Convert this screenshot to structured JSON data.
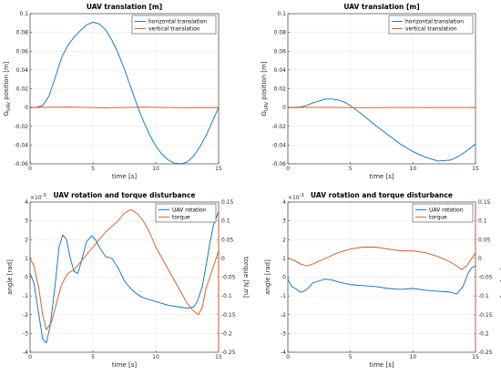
{
  "colors": {
    "blue": "#0072BD",
    "orange": "#D95319",
    "grid": "#e6e6e6",
    "axis": "#262626"
  },
  "chart_data": [
    {
      "type": "line",
      "title": "UAV translation [m]",
      "xlabel": "time [s]",
      "ylabel": "G_UAV position [m]",
      "ylabel_main": "G",
      "ylabel_sub": "UAV",
      "ylabel_rest": " position [m]",
      "xlim": [
        0,
        15
      ],
      "ylim": [
        -0.06,
        0.1
      ],
      "xticks": [
        0,
        5,
        10,
        15
      ],
      "yticks": [
        -0.06,
        -0.04,
        -0.02,
        0,
        0.02,
        0.04,
        0.06,
        0.08,
        0.1
      ],
      "ytick_labels": [
        "-0.06",
        "-0.04",
        "-0.02",
        "0",
        "0.02",
        "0.04",
        "0.06",
        "0.08",
        "0.1"
      ],
      "grid": true,
      "legend": "top-right",
      "series": [
        {
          "name": "horizontal translation",
          "color": "blue",
          "x": [
            0,
            0.5,
            1,
            1.5,
            2,
            2.5,
            3,
            3.5,
            4,
            4.5,
            5,
            5.5,
            6,
            6.5,
            7,
            7.5,
            8,
            8.5,
            9,
            9.5,
            10,
            10.5,
            11,
            11.5,
            12,
            12.5,
            13,
            13.5,
            14,
            14.5,
            15
          ],
          "y": [
            0,
            0.0003,
            0.002,
            0.012,
            0.032,
            0.053,
            0.066,
            0.075,
            0.082,
            0.088,
            0.091,
            0.089,
            0.083,
            0.072,
            0.058,
            0.041,
            0.022,
            0.003,
            -0.014,
            -0.029,
            -0.041,
            -0.05,
            -0.056,
            -0.0595,
            -0.06,
            -0.058,
            -0.052,
            -0.042,
            -0.03,
            -0.015,
            0
          ]
        },
        {
          "name": "vertical translation",
          "color": "orange",
          "x": [
            0,
            3,
            6,
            9,
            12,
            15
          ],
          "y": [
            0,
            0.0005,
            -0.0003,
            0.0004,
            -0.0002,
            0
          ]
        }
      ]
    },
    {
      "type": "line",
      "title": "UAV translation [m]",
      "xlabel": "time [s]",
      "ylabel": "G_UAV position [m]",
      "ylabel_main": "G",
      "ylabel_sub": "UAV",
      "ylabel_rest": " position [m]",
      "xlim": [
        0,
        15
      ],
      "ylim": [
        -0.06,
        0.1
      ],
      "xticks": [
        0,
        5,
        10,
        15
      ],
      "yticks": [
        -0.06,
        -0.04,
        -0.02,
        0,
        0.02,
        0.04,
        0.06,
        0.08,
        0.1
      ],
      "ytick_labels": [
        "-0.06",
        "-0.04",
        "-0.02",
        "0",
        "0.02",
        "0.04",
        "0.06",
        "0.08",
        "0.1"
      ],
      "grid": true,
      "legend": "top-right",
      "series": [
        {
          "name": "horizontal translation",
          "color": "blue",
          "x": [
            0,
            1,
            1.5,
            2,
            2.5,
            3,
            3.5,
            4,
            4.5,
            5,
            6,
            7,
            8,
            9,
            10,
            11,
            12,
            13,
            13.5,
            14,
            15
          ],
          "y": [
            0,
            0.0005,
            0.002,
            0.005,
            0.007,
            0.009,
            0.009,
            0.008,
            0.006,
            0.002,
            -0.008,
            -0.019,
            -0.029,
            -0.039,
            -0.047,
            -0.053,
            -0.057,
            -0.056,
            -0.053,
            -0.049,
            -0.039
          ]
        },
        {
          "name": "vertical translation",
          "color": "orange",
          "x": [
            0,
            3,
            6,
            9,
            12,
            15
          ],
          "y": [
            0,
            0.0002,
            -0.0002,
            0.0001,
            -0.0001,
            0
          ]
        }
      ]
    },
    {
      "type": "line",
      "title": "UAV rotation and torque disturbance",
      "xlabel": "time [s]",
      "ylabel": "angle [rad]",
      "y2label": "torque [N.m]",
      "exponent": "×10",
      "exponent_power": "-3",
      "xlim": [
        0,
        15
      ],
      "ylim": [
        -4,
        4
      ],
      "y2lim": [
        -0.25,
        0.15
      ],
      "xticks": [
        0,
        5,
        10,
        15
      ],
      "yticks": [
        -4,
        -3,
        -2,
        -1,
        0,
        1,
        2,
        3,
        4
      ],
      "ytick_labels": [
        "-4",
        "-3",
        "-2",
        "-1",
        "0",
        "1",
        "2",
        "3",
        "4"
      ],
      "y2ticks": [
        -0.25,
        -0.2,
        -0.15,
        -0.1,
        -0.05,
        0,
        0.05,
        0.1,
        0.15
      ],
      "y2tick_labels": [
        "-0.25",
        "-0.2",
        "-0.15",
        "-0.1",
        "-0.05",
        "0",
        "0.05",
        "0.1",
        "0.15"
      ],
      "grid": true,
      "legend": "top-right",
      "series": [
        {
          "name": "UAV rotation",
          "color": "blue",
          "axis": "left",
          "x": [
            0,
            0.3,
            0.7,
            1.0,
            1.3,
            1.6,
            2.0,
            2.3,
            2.6,
            2.9,
            3.2,
            3.5,
            3.8,
            4.1,
            4.5,
            4.9,
            5.2,
            5.6,
            6.0,
            6.5,
            7.0,
            7.5,
            8.0,
            8.5,
            9.0,
            10,
            11,
            12,
            12.5,
            13,
            13.3,
            13.7,
            14.0,
            14.3,
            14.6,
            15
          ],
          "y": [
            0.2,
            -0.3,
            -2.0,
            -3.3,
            -3.5,
            -2.6,
            -0.4,
            1.6,
            2.25,
            2.0,
            1.0,
            0.3,
            0.2,
            0.9,
            1.9,
            2.2,
            2.0,
            1.5,
            1.1,
            1.0,
            0.5,
            -0.2,
            -0.6,
            -0.9,
            -1.1,
            -1.3,
            -1.5,
            -1.6,
            -1.65,
            -1.6,
            -1.3,
            -0.5,
            0.6,
            1.8,
            2.8,
            3.5
          ]
        },
        {
          "name": "torque",
          "color": "orange",
          "axis": "right",
          "x": [
            0,
            0.3,
            0.7,
            1.0,
            1.3,
            1.7,
            2.1,
            2.5,
            3.0,
            3.5,
            4.0,
            5.0,
            6.0,
            7.0,
            7.5,
            8.0,
            8.5,
            9.0,
            9.5,
            10,
            11,
            12,
            12.5,
            13.0,
            13.4,
            13.7,
            14.0,
            14.5,
            15
          ],
          "y": [
            0.0,
            -0.02,
            -0.08,
            -0.15,
            -0.19,
            -0.17,
            -0.12,
            -0.07,
            -0.04,
            -0.03,
            -0.01,
            0.03,
            0.07,
            0.1,
            0.12,
            0.13,
            0.12,
            0.1,
            0.07,
            0.03,
            -0.03,
            -0.09,
            -0.12,
            -0.14,
            -0.15,
            -0.13,
            -0.08,
            -0.03,
            0.02
          ]
        }
      ]
    },
    {
      "type": "line",
      "title": "UAV rotation and torque disturbance",
      "xlabel": "time [s]",
      "ylabel": "angle [rad]",
      "y2label": "torque [N.m]",
      "exponent": "×10",
      "exponent_power": "-3",
      "xlim": [
        0,
        15
      ],
      "ylim": [
        -4,
        4
      ],
      "y2lim": [
        -0.25,
        0.15
      ],
      "xticks": [
        0,
        5,
        10,
        15
      ],
      "yticks": [
        -4,
        -3,
        -2,
        -1,
        0,
        1,
        2,
        3,
        4
      ],
      "ytick_labels": [
        "-4",
        "-3",
        "-2",
        "-1",
        "0",
        "1",
        "2",
        "3",
        "4"
      ],
      "y2ticks": [
        -0.25,
        -0.2,
        -0.15,
        -0.1,
        -0.05,
        0,
        0.05,
        0.1,
        0.15
      ],
      "y2tick_labels": [
        "-0.25",
        "-0.2",
        "-0.15",
        "-0.1",
        "-0.05",
        "0",
        "0.05",
        "0.1",
        "0.15"
      ],
      "grid": true,
      "legend": "top-right",
      "series": [
        {
          "name": "UAV rotation",
          "color": "blue",
          "axis": "left",
          "x": [
            0,
            0.3,
            0.6,
            1.0,
            1.3,
            1.6,
            2.0,
            2.5,
            3.0,
            3.5,
            4.0,
            5.0,
            6.0,
            7.0,
            8.0,
            9.0,
            10.0,
            11.0,
            12.0,
            13.0,
            13.5,
            14.0,
            14.4,
            14.7,
            15
          ],
          "y": [
            -0.1,
            -0.5,
            -0.6,
            -0.8,
            -0.75,
            -0.6,
            -0.3,
            -0.2,
            -0.1,
            -0.15,
            -0.25,
            -0.4,
            -0.45,
            -0.5,
            -0.6,
            -0.65,
            -0.6,
            -0.7,
            -0.75,
            -0.8,
            -0.9,
            -0.5,
            0.2,
            0.5,
            0.6
          ]
        },
        {
          "name": "torque",
          "color": "orange",
          "axis": "right",
          "x": [
            0,
            0.5,
            1.0,
            1.5,
            2.0,
            3.0,
            4.0,
            5.0,
            6.0,
            7.0,
            8.0,
            9.0,
            10.0,
            11.0,
            12.0,
            13.0,
            13.5,
            13.9,
            14.3,
            14.7,
            15
          ],
          "y": [
            0.0,
            -0.005,
            -0.015,
            -0.02,
            -0.015,
            0.0,
            0.015,
            0.025,
            0.03,
            0.03,
            0.025,
            0.02,
            0.02,
            0.015,
            0.005,
            -0.01,
            -0.02,
            -0.03,
            -0.02,
            0.0,
            0.015
          ]
        }
      ]
    }
  ]
}
